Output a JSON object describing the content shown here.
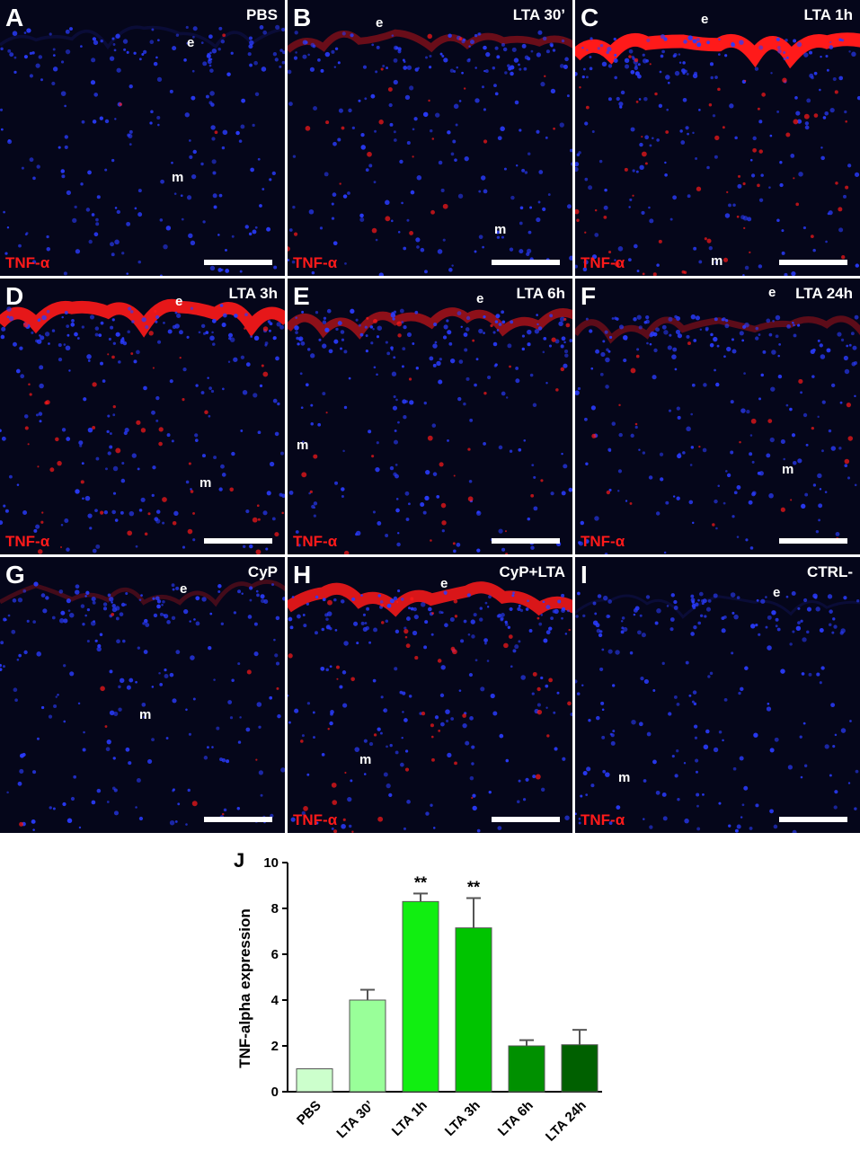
{
  "panels": [
    {
      "letter": "A",
      "condition": "PBS",
      "epithelium": "e",
      "mucosa": "m",
      "stain": "TNF-α",
      "stain_shown": true,
      "red_intensity": 0.05
    },
    {
      "letter": "B",
      "condition": "LTA 30’",
      "epithelium": "e",
      "mucosa": "m",
      "stain": "TNF-α",
      "stain_shown": true,
      "red_intensity": 0.4
    },
    {
      "letter": "C",
      "condition": "LTA 1h",
      "epithelium": "e",
      "mucosa": "m",
      "stain": "TNF-α",
      "stain_shown": true,
      "red_intensity": 1.0
    },
    {
      "letter": "D",
      "condition": "LTA 3h",
      "epithelium": "e",
      "mucosa": "m",
      "stain": "TNF-α",
      "stain_shown": true,
      "red_intensity": 0.9
    },
    {
      "letter": "E",
      "condition": "LTA 6h",
      "epithelium": "e",
      "mucosa": "m",
      "stain": "TNF-α",
      "stain_shown": true,
      "red_intensity": 0.55
    },
    {
      "letter": "F",
      "condition": "LTA 24h",
      "epithelium": "e",
      "mucosa": "m",
      "stain": "TNF-α",
      "stain_shown": true,
      "red_intensity": 0.35
    },
    {
      "letter": "G",
      "condition": "CyP",
      "epithelium": "e",
      "mucosa": "m",
      "stain": "",
      "stain_shown": false,
      "red_intensity": 0.15
    },
    {
      "letter": "H",
      "condition": "CyP+LTA",
      "epithelium": "e",
      "mucosa": "m",
      "stain": "TNF-α",
      "stain_shown": true,
      "red_intensity": 0.85
    },
    {
      "letter": "I",
      "condition": "CTRL-",
      "epithelium": "e",
      "mucosa": "m",
      "stain": "TNF-α",
      "stain_shown": true,
      "red_intensity": 0.0
    }
  ],
  "colors": {
    "nuclei": "#2a3cff",
    "stain": "#ff1a1a",
    "background": "#05061a"
  },
  "chart_panel_letter": "J",
  "chart_data": {
    "type": "bar",
    "ylabel": "TNF-alpha expression",
    "ylim": [
      0,
      10
    ],
    "yticks": [
      0,
      2,
      4,
      6,
      8,
      10
    ],
    "categories": [
      "PBS",
      "LTA 30’",
      "LTA 1h",
      "LTA 3h",
      "LTA 6h",
      "LTA 24h"
    ],
    "values": [
      1.0,
      4.0,
      8.3,
      7.15,
      2.0,
      2.05
    ],
    "errors": [
      0.0,
      0.45,
      0.35,
      1.3,
      0.25,
      0.65
    ],
    "significance": [
      "",
      "",
      "**",
      "**",
      "",
      ""
    ],
    "colors": [
      "#ccffcc",
      "#99ff99",
      "#11ee11",
      "#00c400",
      "#009000",
      "#006000"
    ]
  }
}
